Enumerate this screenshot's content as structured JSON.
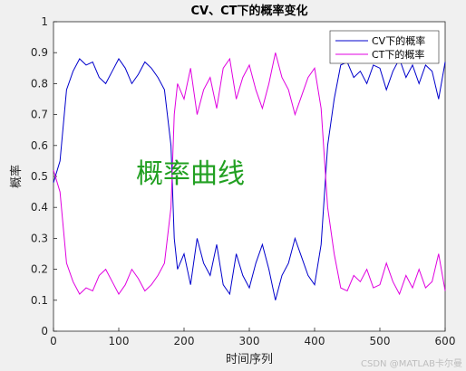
{
  "chart_data": {
    "type": "line",
    "title": "CV、CT下的概率变化",
    "xlabel": "时间序列",
    "ylabel": "概率",
    "xlim": [
      0,
      600
    ],
    "ylim": [
      0,
      1
    ],
    "xticks": [
      "0",
      "100",
      "200",
      "300",
      "400",
      "500",
      "600"
    ],
    "yticks": [
      "0",
      "0.1",
      "0.2",
      "0.3",
      "0.4",
      "0.5",
      "0.6",
      "0.7",
      "0.8",
      "0.9",
      "1"
    ],
    "legend_position": "top-right",
    "annotation": "概率曲线",
    "x": [
      0,
      10,
      20,
      30,
      40,
      50,
      60,
      70,
      80,
      90,
      100,
      110,
      120,
      130,
      140,
      150,
      160,
      170,
      180,
      185,
      190,
      200,
      210,
      220,
      230,
      240,
      250,
      260,
      270,
      280,
      290,
      300,
      310,
      320,
      330,
      340,
      350,
      360,
      370,
      380,
      390,
      400,
      410,
      420,
      430,
      440,
      450,
      460,
      470,
      480,
      490,
      500,
      510,
      520,
      530,
      540,
      550,
      560,
      570,
      580,
      590,
      600
    ],
    "series": [
      {
        "name": "CV下的概率",
        "color": "#0000cc",
        "values": [
          0.48,
          0.55,
          0.78,
          0.84,
          0.88,
          0.86,
          0.87,
          0.82,
          0.8,
          0.84,
          0.88,
          0.85,
          0.8,
          0.83,
          0.87,
          0.85,
          0.82,
          0.78,
          0.6,
          0.3,
          0.2,
          0.25,
          0.15,
          0.3,
          0.22,
          0.18,
          0.28,
          0.15,
          0.12,
          0.25,
          0.18,
          0.14,
          0.22,
          0.28,
          0.2,
          0.1,
          0.18,
          0.22,
          0.3,
          0.24,
          0.18,
          0.15,
          0.28,
          0.6,
          0.75,
          0.86,
          0.87,
          0.82,
          0.84,
          0.8,
          0.86,
          0.85,
          0.78,
          0.84,
          0.88,
          0.82,
          0.86,
          0.8,
          0.86,
          0.84,
          0.75,
          0.87
        ]
      },
      {
        "name": "CT下的概率",
        "color": "#e000e0",
        "values": [
          0.52,
          0.45,
          0.22,
          0.16,
          0.12,
          0.14,
          0.13,
          0.18,
          0.2,
          0.16,
          0.12,
          0.15,
          0.2,
          0.17,
          0.13,
          0.15,
          0.18,
          0.22,
          0.4,
          0.7,
          0.8,
          0.75,
          0.85,
          0.7,
          0.78,
          0.82,
          0.72,
          0.85,
          0.88,
          0.75,
          0.82,
          0.86,
          0.78,
          0.72,
          0.8,
          0.9,
          0.82,
          0.78,
          0.7,
          0.76,
          0.82,
          0.85,
          0.72,
          0.4,
          0.25,
          0.14,
          0.13,
          0.18,
          0.16,
          0.2,
          0.14,
          0.15,
          0.22,
          0.16,
          0.12,
          0.18,
          0.14,
          0.2,
          0.14,
          0.16,
          0.25,
          0.13
        ]
      }
    ]
  },
  "watermark": "CSDN @MATLAB卡尔曼"
}
